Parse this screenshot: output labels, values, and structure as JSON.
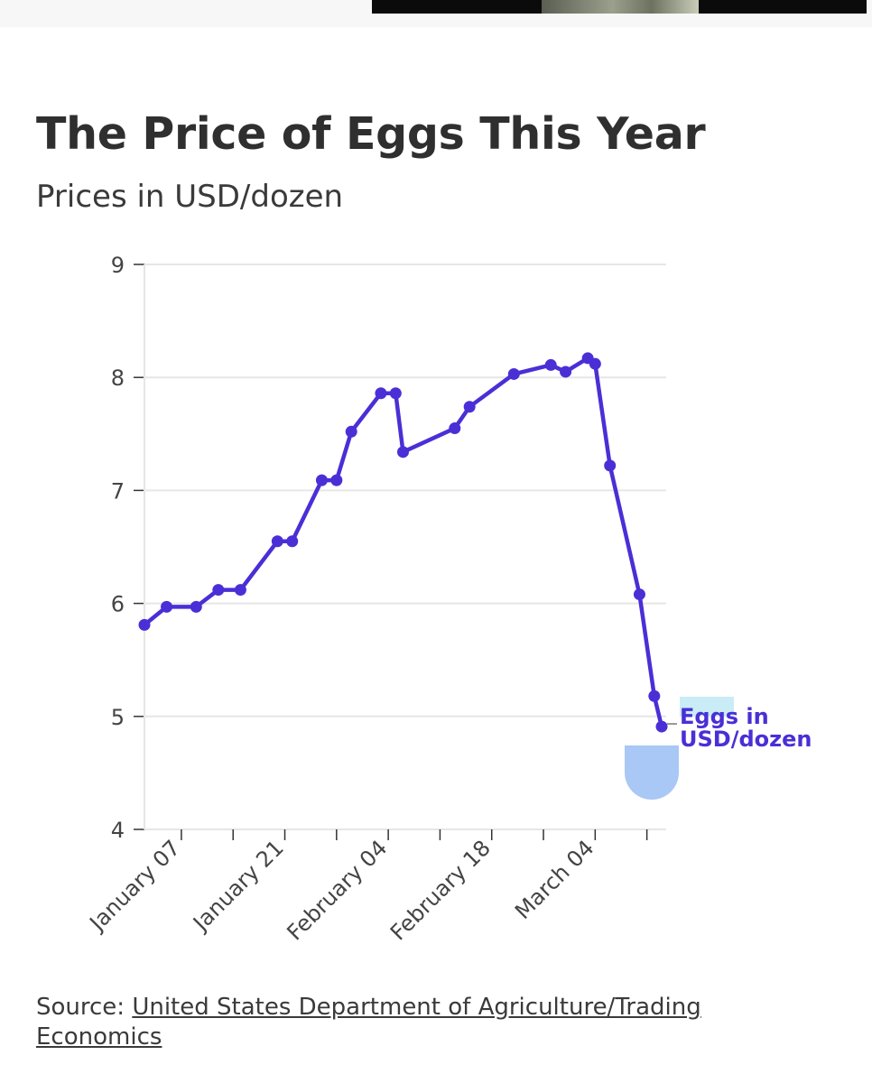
{
  "header": {
    "title": "The Price of Eggs This Year",
    "subtitle": "Prices in USD/dozen"
  },
  "colors": {
    "series": "#4a2fd6",
    "grid": "#e6e6e6",
    "axis": "#333333",
    "marker_blob": "#a9c8f5",
    "label_highlight": "#c9ecf7"
  },
  "chart_data": {
    "type": "line",
    "title": "The Price of Eggs This Year",
    "subtitle": "Prices in USD/dozen",
    "xlabel": "",
    "ylabel": "",
    "ylim": [
      4,
      9
    ],
    "yticks": [
      4,
      5,
      6,
      7,
      8,
      9
    ],
    "xtick_labels": [
      "January 07",
      "January 21",
      "February 04",
      "February 18",
      "March 04"
    ],
    "grid": true,
    "series": [
      {
        "name": "Eggs in USD/dozen",
        "x": [
          "Jan 02",
          "Jan 05",
          "Jan 09",
          "Jan 12",
          "Jan 15",
          "Jan 20",
          "Jan 22",
          "Jan 26",
          "Jan 28",
          "Jan 30",
          "Feb 03",
          "Feb 05",
          "Feb 06",
          "Feb 13",
          "Feb 15",
          "Feb 21",
          "Feb 26",
          "Feb 28",
          "Mar 03",
          "Mar 04",
          "Mar 06",
          "Mar 10",
          "Mar 12",
          "Mar 13"
        ],
        "values": [
          5.81,
          5.97,
          5.97,
          6.12,
          6.12,
          6.55,
          6.55,
          7.09,
          7.09,
          7.52,
          7.86,
          7.86,
          7.34,
          7.55,
          7.74,
          8.03,
          8.11,
          8.05,
          8.17,
          8.12,
          7.22,
          6.08,
          5.18,
          4.91
        ]
      }
    ],
    "end_label": {
      "line1": "Eggs in",
      "line2": "USD/dozen"
    }
  },
  "source": {
    "prefix": "Source: ",
    "link_text": "United States Department of Agriculture/Trading Economics"
  }
}
